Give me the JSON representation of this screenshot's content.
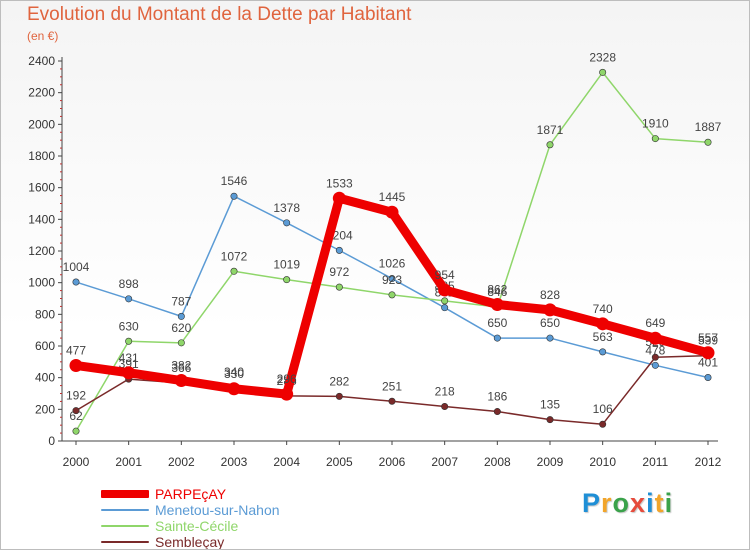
{
  "title": "Evolution du Montant de la Dette par Habitant",
  "subtitle": "(en €)",
  "logo": {
    "text": "Proxiti",
    "letters": [
      {
        "ch": "P",
        "color": "#1f8fd6"
      },
      {
        "ch": "r",
        "color": "#f2a52a"
      },
      {
        "ch": "o",
        "color": "#3aa24a"
      },
      {
        "ch": "x",
        "color": "#e64b3c"
      },
      {
        "ch": "i",
        "color": "#1f8fd6"
      },
      {
        "ch": "t",
        "color": "#f2a52a"
      },
      {
        "ch": "i",
        "color": "#3aa24a"
      }
    ]
  },
  "chart_data": {
    "type": "line",
    "title": "Evolution du Montant de la Dette par Habitant",
    "subtitle": "(en €)",
    "xlabel": "",
    "ylabel": "",
    "x": [
      "2000",
      "2001",
      "2002",
      "2003",
      "2004",
      "2005",
      "2006",
      "2007",
      "2008",
      "2009",
      "2010",
      "2011",
      "2012"
    ],
    "ylim": [
      0,
      2400
    ],
    "yticks": [
      0,
      200,
      400,
      600,
      800,
      1000,
      1200,
      1400,
      1600,
      1800,
      2000,
      2200,
      2400
    ],
    "grid": false,
    "legend": "bottom-left",
    "series": [
      {
        "name": "PARPEçAY",
        "color": "#ee0000",
        "emphasis": true,
        "values": [
          477,
          431,
          382,
          330,
          296,
          1533,
          1445,
          954,
          862,
          828,
          740,
          649,
          557
        ]
      },
      {
        "name": "Menetou-sur-Nahon",
        "color": "#5b9bd5",
        "emphasis": false,
        "values": [
          1004,
          898,
          787,
          1546,
          1378,
          1204,
          1026,
          842,
          650,
          650,
          563,
          478,
          401
        ]
      },
      {
        "name": "Sainte-Cécile",
        "color": "#8fd66a",
        "emphasis": false,
        "values": [
          62,
          630,
          620,
          1072,
          1019,
          972,
          923,
          885,
          846,
          1871,
          2328,
          1910,
          1887
        ]
      },
      {
        "name": "Sembleçay",
        "color": "#7a2a2a",
        "emphasis": false,
        "values": [
          192,
          391,
          366,
          340,
          285,
          282,
          251,
          218,
          186,
          135,
          106,
          529,
          539
        ]
      }
    ]
  }
}
